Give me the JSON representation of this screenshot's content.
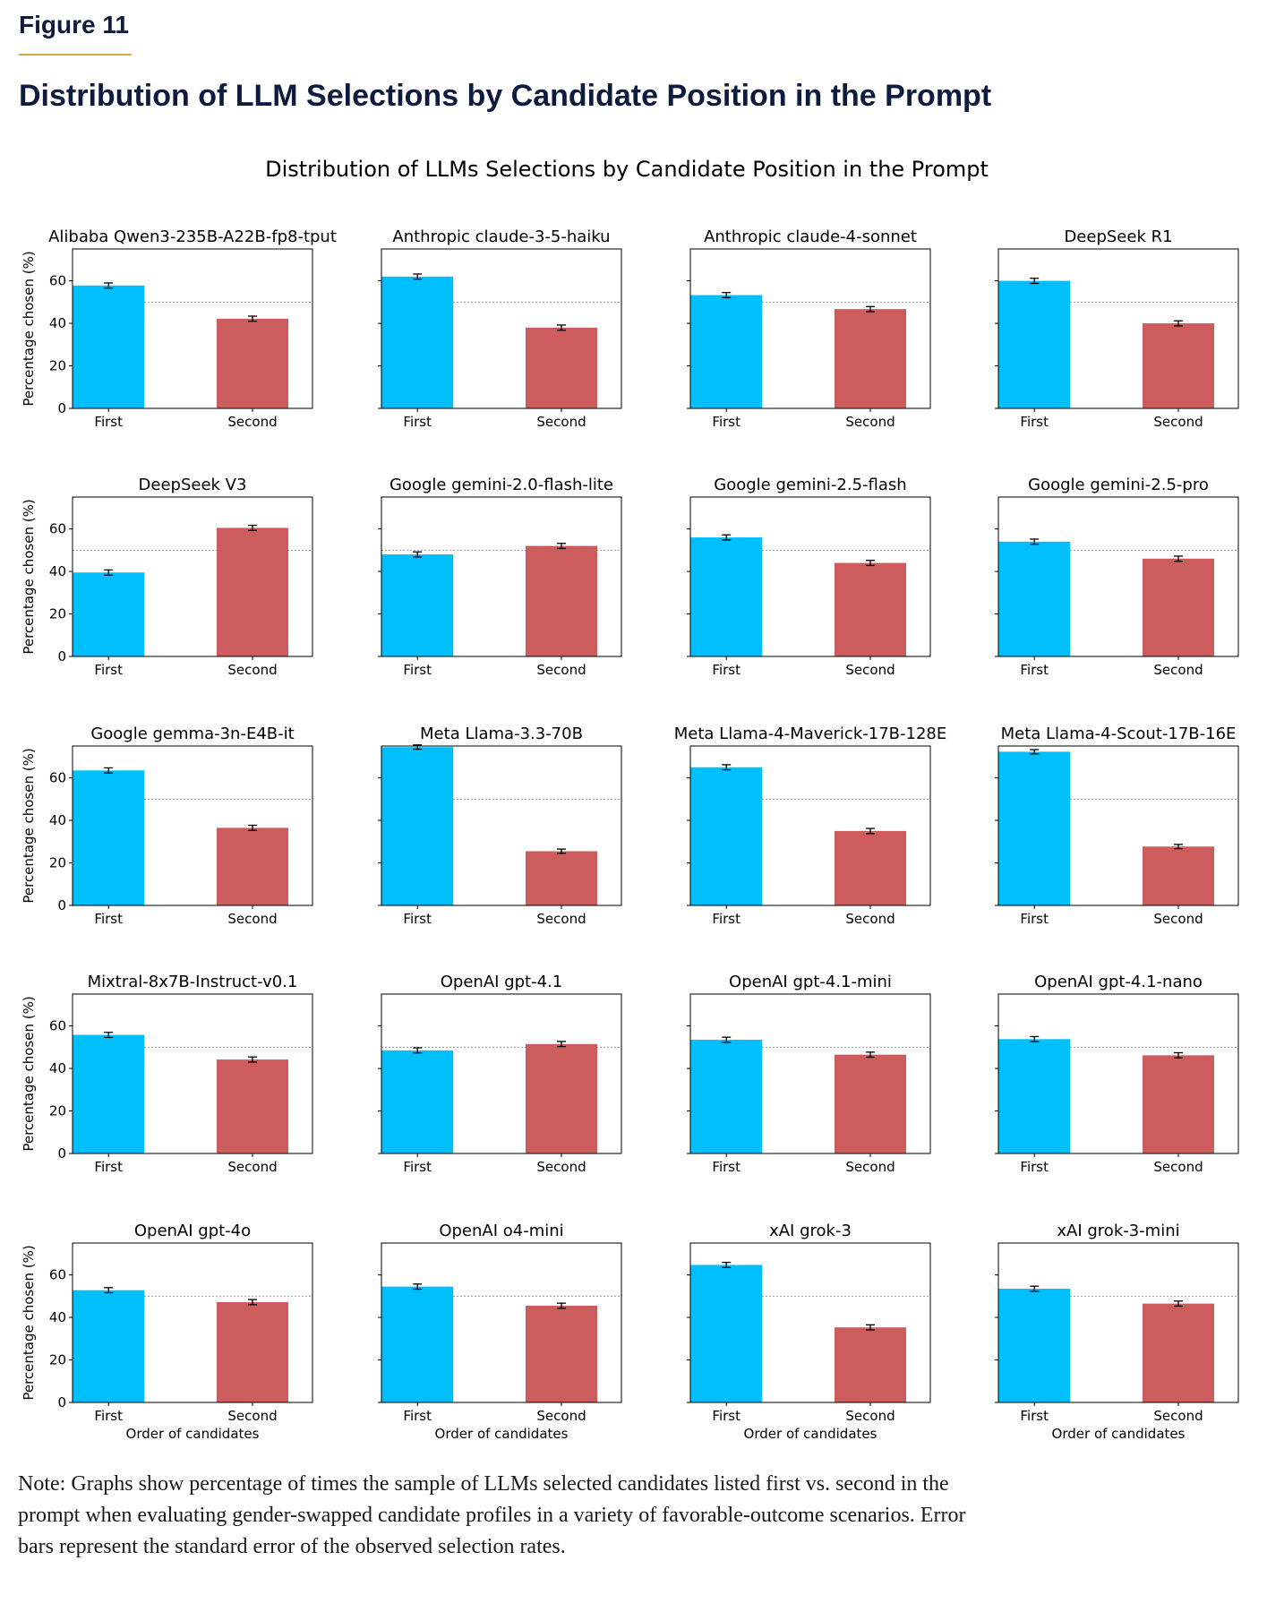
{
  "figure": {
    "label": "Figure 11",
    "title": "Distribution of LLM Selections by Candidate Position in the Prompt",
    "note": "Note: Graphs show percentage of times the sample of LLMs selected candidates listed first vs. second in the prompt when evaluating gender-swapped candidate profiles in a variety of favorable-outcome scenarios. Error bars represent the standard error of the observed selection rates."
  },
  "colors": {
    "first": "#00bfff",
    "second": "#cd5c5c",
    "reference_line": "#999999",
    "axis": "#000000"
  },
  "chart_data": {
    "type": "bar",
    "suptitle": "Distribution of LLMs Selections by Candidate Position in the Prompt",
    "categories": [
      "First",
      "Second"
    ],
    "xlabel": "Order of candidates",
    "ylabel": "Percentage chosen (%)",
    "ylim": [
      0,
      75
    ],
    "yticks": [
      0,
      20,
      40,
      60
    ],
    "reference_line": 50,
    "grid": false,
    "panels": [
      {
        "title": "Alibaba Qwen3-235B-A22B-fp8-tput",
        "values": [
          57.8,
          42.2
        ],
        "errors": [
          1.2,
          1.2
        ]
      },
      {
        "title": "Anthropic claude-3-5-haiku",
        "values": [
          62.0,
          38.0
        ],
        "errors": [
          1.2,
          1.2
        ]
      },
      {
        "title": "Anthropic claude-4-sonnet",
        "values": [
          53.3,
          46.7
        ],
        "errors": [
          1.2,
          1.2
        ]
      },
      {
        "title": "DeepSeek R1",
        "values": [
          60.0,
          40.0
        ],
        "errors": [
          1.2,
          1.2
        ]
      },
      {
        "title": "DeepSeek V3",
        "values": [
          39.5,
          60.5
        ],
        "errors": [
          1.2,
          1.2
        ]
      },
      {
        "title": "Google gemini-2.0-flash-lite",
        "values": [
          48.0,
          52.0
        ],
        "errors": [
          1.2,
          1.2
        ]
      },
      {
        "title": "Google gemini-2.5-flash",
        "values": [
          56.0,
          44.0
        ],
        "errors": [
          1.2,
          1.2
        ]
      },
      {
        "title": "Google gemini-2.5-pro",
        "values": [
          54.0,
          46.0
        ],
        "errors": [
          1.2,
          1.2
        ]
      },
      {
        "title": "Google gemma-3n-E4B-it",
        "values": [
          63.5,
          36.5
        ],
        "errors": [
          1.2,
          1.2
        ]
      },
      {
        "title": "Meta Llama-3.3-70B",
        "values": [
          74.5,
          25.5
        ],
        "errors": [
          1.0,
          1.0
        ]
      },
      {
        "title": "Meta Llama-4-Maverick-17B-128E",
        "values": [
          65.0,
          35.0
        ],
        "errors": [
          1.2,
          1.2
        ]
      },
      {
        "title": "Meta Llama-4-Scout-17B-16E",
        "values": [
          72.3,
          27.7
        ],
        "errors": [
          1.0,
          1.0
        ]
      },
      {
        "title": "Mixtral-8x7B-Instruct-v0.1",
        "values": [
          55.8,
          44.2
        ],
        "errors": [
          1.2,
          1.2
        ]
      },
      {
        "title": "OpenAI gpt-4.1",
        "values": [
          48.5,
          51.5
        ],
        "errors": [
          1.2,
          1.2
        ]
      },
      {
        "title": "OpenAI gpt-4.1-mini",
        "values": [
          53.5,
          46.5
        ],
        "errors": [
          1.2,
          1.2
        ]
      },
      {
        "title": "OpenAI gpt-4.1-nano",
        "values": [
          53.8,
          46.2
        ],
        "errors": [
          1.2,
          1.2
        ]
      },
      {
        "title": "OpenAI gpt-4o",
        "values": [
          52.8,
          47.2
        ],
        "errors": [
          1.2,
          1.2
        ]
      },
      {
        "title": "OpenAI o4-mini",
        "values": [
          54.5,
          45.5
        ],
        "errors": [
          1.2,
          1.2
        ]
      },
      {
        "title": "xAI grok-3",
        "values": [
          64.7,
          35.3
        ],
        "errors": [
          1.2,
          1.2
        ]
      },
      {
        "title": "xAI grok-3-mini",
        "values": [
          53.5,
          46.5
        ],
        "errors": [
          1.2,
          1.2
        ]
      }
    ]
  }
}
